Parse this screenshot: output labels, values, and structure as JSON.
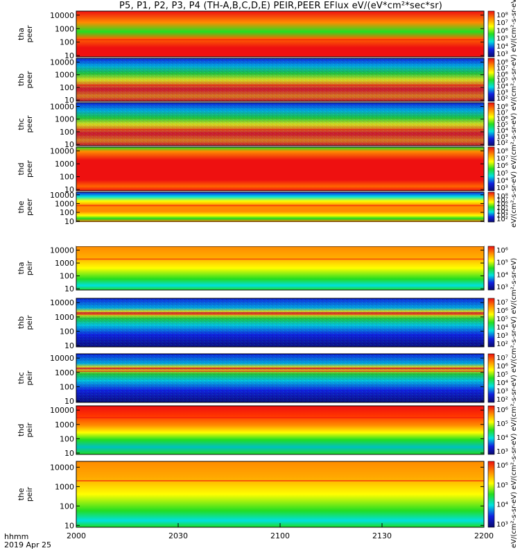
{
  "title": "P5, P1, P2, P3, P4 (TH-A,B,C,D,E) PEIR,PEER EFlux eV/(eV*cm²*sec*sr)",
  "footer": {
    "line1": "hhmm",
    "line2": "2019 Apr 25"
  },
  "colorbar_titles": {
    "upper": "eV/(cm²-s-sr-eV)  eV/(cm²-s-sr-eV)  eV/(cm²-s-sr-eV)  eV/(cm²-s-sr-eV)  eV/(cm²-s-sr-eV)",
    "lower": "eV/(cm²-s-sr-eV)  eV/(cm²-s-sr-eV)  eV/(cm²-s-sr-eV)  eV/(cm²-s-sr-eV)  eV/(cm²-s-sr-eV)"
  },
  "colors": {
    "red": "#ee1010",
    "orange": "#ff8c00",
    "yellow": "#ffff00",
    "green": "#22dd22",
    "cyan": "#00e0e0",
    "blue": "#1020e0",
    "navy": "#0a0a6e"
  },
  "chart_data": {
    "type": "heatmap",
    "x_axis": {
      "range": [
        "2000",
        "2200"
      ],
      "ticks": [
        "2000",
        "2030",
        "2100",
        "2130",
        "2200"
      ],
      "label": "hhmm"
    },
    "y_axis": {
      "scale": "log",
      "range": [
        10,
        20000
      ],
      "ticks": [
        "10",
        "100",
        "1000",
        "10000"
      ]
    },
    "panels": [
      {
        "label1": "tha",
        "label2": "peer",
        "colorbar_ticks": [
          "10³",
          "10⁴",
          "10⁵",
          "10⁶",
          "10⁷",
          "10⁸"
        ],
        "band_center": 150,
        "profile": "tha-peer"
      },
      {
        "label1": "thb",
        "label2": "peer",
        "colorbar_ticks": [
          "10²",
          "10³",
          "10⁴",
          "10⁵",
          "10⁶",
          "10⁷",
          "10⁸"
        ],
        "band_center": 150,
        "profile": "flat-e"
      },
      {
        "label1": "thc",
        "label2": "peer",
        "colorbar_ticks": [
          "10²",
          "10³",
          "10⁴",
          "10⁵",
          "10⁶",
          "10⁷",
          "10⁸"
        ],
        "band_center": 150,
        "profile": "flat-e"
      },
      {
        "label1": "thd",
        "label2": "peer",
        "colorbar_ticks": [
          "10³",
          "10⁴",
          "10⁵",
          "10⁶",
          "10⁷",
          "10⁸"
        ],
        "band_center": 400,
        "profile": "thd-peer"
      },
      {
        "label1": "the",
        "label2": "peer",
        "colorbar_ticks": [
          "10²",
          "10³",
          "10⁴",
          "10⁵",
          "10⁶",
          "10⁷",
          "10⁸"
        ],
        "band_center": 600,
        "profile": "the-peer"
      },
      {
        "label1": "tha",
        "label2": "peir",
        "colorbar_ticks": [
          "10³",
          "10⁴",
          "10⁵",
          "10⁶"
        ],
        "band_center": 2000,
        "profile": "ion-broad"
      },
      {
        "label1": "thb",
        "label2": "peir",
        "colorbar_ticks": [
          "10²",
          "10³",
          "10⁴",
          "10⁵",
          "10⁶",
          "10⁷"
        ],
        "band_center": 1500,
        "profile": "ion-narrow"
      },
      {
        "label1": "thc",
        "label2": "peir",
        "colorbar_ticks": [
          "10²",
          "10³",
          "10⁴",
          "10⁵",
          "10⁶",
          "10⁷"
        ],
        "band_center": 1200,
        "profile": "ion-narrow"
      },
      {
        "label1": "thd",
        "label2": "peir",
        "colorbar_ticks": [
          "10³",
          "10⁴",
          "10⁵",
          "10⁶"
        ],
        "band_center": 3000,
        "profile": "ion-high"
      },
      {
        "label1": "the",
        "label2": "peir",
        "colorbar_ticks": [
          "10³",
          "10⁴",
          "10⁵",
          "10⁶"
        ],
        "band_center": 2000,
        "profile": "ion-broad"
      }
    ]
  }
}
